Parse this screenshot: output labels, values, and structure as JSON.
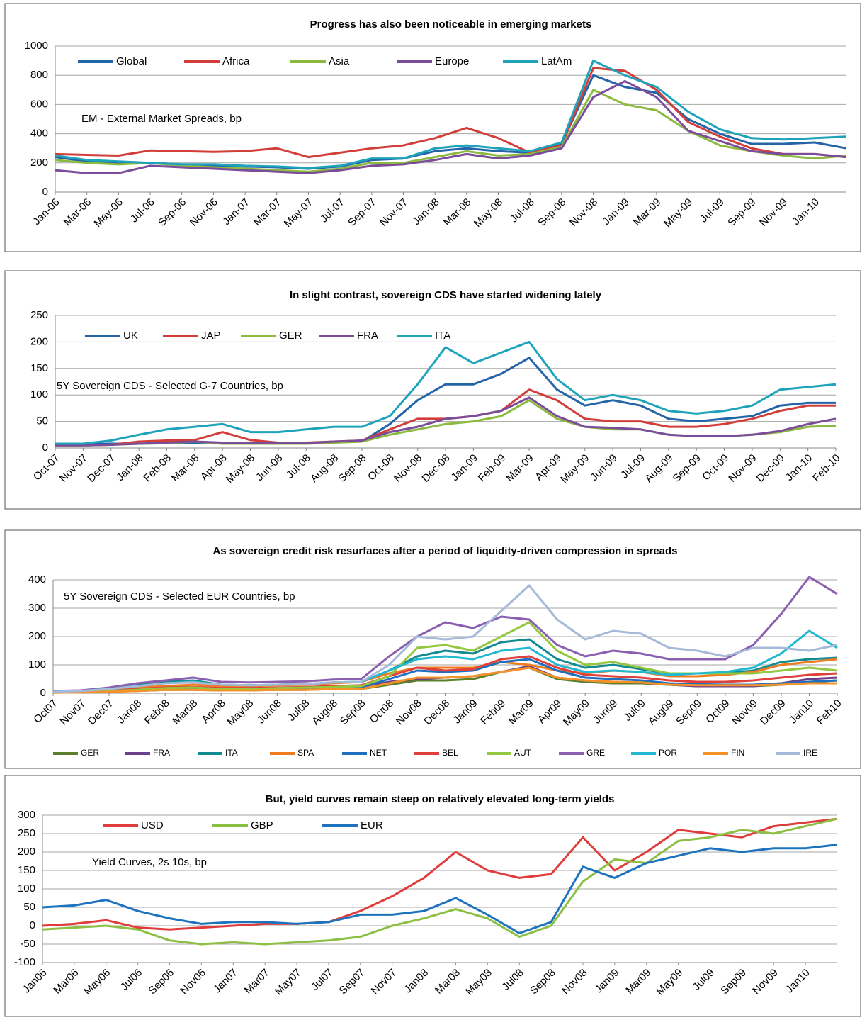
{
  "chart_data": [
    {
      "type": "line",
      "title": "Progress has also  been noticeable in emerging markets",
      "annotation": "EM - External Market Spreads, bp",
      "legend": "top",
      "categories": [
        "Jan-06",
        "Mar-06",
        "May-06",
        "Jul-06",
        "Sep-06",
        "Nov-06",
        "Jan-07",
        "Mar-07",
        "May-07",
        "Jul-07",
        "Sep-07",
        "Nov-07",
        "Jan-08",
        "Mar-08",
        "May-08",
        "Jul-08",
        "Sep-08",
        "Nov-08",
        "Jan-09",
        "Mar-09",
        "May-09",
        "Jul-09",
        "Sep-09",
        "Nov-09",
        "Jan-10",
        null
      ],
      "ylim": [
        0,
        1000
      ],
      "yticks": [
        0,
        200,
        400,
        600,
        800,
        1000
      ],
      "grid": true,
      "series": [
        {
          "name": "Global",
          "color": "#2464a8",
          "values": [
            240,
            210,
            195,
            200,
            190,
            180,
            175,
            170,
            160,
            175,
            220,
            230,
            280,
            300,
            280,
            270,
            330,
            800,
            720,
            680,
            500,
            400,
            330,
            330,
            340,
            300
          ]
        },
        {
          "name": "Africa",
          "color": "#d23f3b",
          "values": [
            260,
            255,
            250,
            285,
            280,
            275,
            280,
            300,
            240,
            270,
            300,
            320,
            370,
            440,
            370,
            270,
            320,
            850,
            830,
            700,
            480,
            380,
            300,
            260,
            260,
            240
          ]
        },
        {
          "name": "Asia",
          "color": "#8cba3f",
          "values": [
            220,
            200,
            190,
            200,
            180,
            170,
            160,
            150,
            140,
            160,
            200,
            200,
            240,
            280,
            250,
            260,
            310,
            700,
            600,
            560,
            420,
            320,
            280,
            250,
            230,
            250
          ]
        },
        {
          "name": "Europe",
          "color": "#7b4c9a",
          "values": [
            150,
            130,
            130,
            180,
            170,
            160,
            150,
            140,
            130,
            150,
            180,
            190,
            220,
            260,
            230,
            250,
            300,
            650,
            760,
            650,
            420,
            350,
            280,
            260,
            260,
            240
          ]
        },
        {
          "name": "LatAm",
          "color": "#1fa3bb",
          "values": [
            250,
            220,
            210,
            200,
            190,
            190,
            180,
            175,
            165,
            180,
            230,
            230,
            300,
            320,
            300,
            280,
            340,
            900,
            800,
            720,
            550,
            430,
            370,
            360,
            370,
            380
          ]
        }
      ]
    },
    {
      "type": "line",
      "title": "In slight  contrast, sovereign CDS have started widening lately",
      "annotation": "5Y Sovereign CDS - Selected G-7  Countries, bp",
      "legend": "top",
      "categories": [
        "Oct-07",
        "Nov-07",
        "Dec-07",
        "Jan-08",
        "Feb-08",
        "Mar-08",
        "Apr-08",
        "May-08",
        "Jun-08",
        "Jul-08",
        "Aug-08",
        "Sep-08",
        "Oct-08",
        "Nov-08",
        "Dec-08",
        "Jan-09",
        "Feb-09",
        "Mar-09",
        "Apr-09",
        "May-09",
        "Jun-09",
        "Jul-09",
        "Aug-09",
        "Sep-09",
        "Oct-09",
        "Nov-09",
        "Dec-09",
        "Jan-10",
        "Feb-10"
      ],
      "ylim": [
        0,
        250
      ],
      "yticks": [
        0,
        50,
        100,
        150,
        200,
        250
      ],
      "grid": true,
      "series": [
        {
          "name": "UK",
          "color": "#2464a8",
          "values": [
            8,
            8,
            8,
            8,
            9,
            10,
            9,
            9,
            9,
            9,
            12,
            12,
            45,
            90,
            120,
            120,
            140,
            170,
            110,
            80,
            90,
            80,
            55,
            50,
            55,
            60,
            80,
            85,
            85
          ]
        },
        {
          "name": "JAP",
          "color": "#d23f3b",
          "values": [
            5,
            5,
            6,
            12,
            14,
            15,
            30,
            15,
            10,
            10,
            12,
            14,
            35,
            55,
            55,
            60,
            70,
            110,
            90,
            55,
            50,
            50,
            40,
            40,
            45,
            55,
            70,
            80,
            80
          ]
        },
        {
          "name": "GER",
          "color": "#8cba3f",
          "values": [
            5,
            5,
            6,
            8,
            9,
            12,
            8,
            8,
            8,
            8,
            10,
            12,
            25,
            35,
            45,
            50,
            60,
            90,
            55,
            40,
            35,
            35,
            25,
            22,
            22,
            25,
            30,
            40,
            42
          ]
        },
        {
          "name": "FRA",
          "color": "#7b4c9a",
          "values": [
            5,
            5,
            6,
            8,
            10,
            12,
            10,
            9,
            9,
            9,
            12,
            14,
            30,
            40,
            55,
            60,
            70,
            95,
            60,
            40,
            38,
            35,
            25,
            22,
            22,
            25,
            32,
            45,
            55
          ]
        },
        {
          "name": "ITA",
          "color": "#1fa3bb",
          "values": [
            8,
            8,
            14,
            25,
            35,
            40,
            45,
            30,
            30,
            35,
            40,
            40,
            60,
            120,
            190,
            160,
            180,
            200,
            130,
            90,
            100,
            90,
            70,
            65,
            70,
            80,
            110,
            115,
            120
          ]
        }
      ]
    },
    {
      "type": "line",
      "title": "As sovereign credit risk resurfaces after a period of liquidity-driven compression in spreads",
      "annotation": "5Y Sovereign CDS - Selected EUR  Countries, bp",
      "legend": "bottom",
      "categories": [
        "Oct07",
        "Nov07",
        "Dec07",
        "Jan08",
        "Feb08",
        "Mar08",
        "Apr08",
        "May08",
        "Jun08",
        "Jul08",
        "Aug08",
        "Sep08",
        "Oct08",
        "Nov08",
        "Dec08",
        "Jan09",
        "Feb09",
        "Mar09",
        "Apr09",
        "May09",
        "Jun09",
        "Jul09",
        "Aug09",
        "Sep09",
        "Oct09",
        "Nov09",
        "Dec09",
        "Jan10",
        "Feb10"
      ],
      "ylim": [
        0,
        400
      ],
      "yticks": [
        0,
        100,
        200,
        300,
        400
      ],
      "grid": true,
      "series": [
        {
          "name": "GER",
          "color": "#5b7f2a",
          "values": [
            3,
            4,
            6,
            8,
            12,
            12,
            10,
            10,
            12,
            12,
            15,
            15,
            30,
            45,
            45,
            50,
            75,
            90,
            50,
            40,
            35,
            35,
            30,
            25,
            25,
            25,
            30,
            40,
            45
          ]
        },
        {
          "name": "FRA",
          "color": "#6b3f8a",
          "values": [
            3,
            4,
            6,
            10,
            15,
            15,
            12,
            12,
            14,
            14,
            16,
            20,
            40,
            50,
            55,
            60,
            75,
            95,
            55,
            45,
            40,
            38,
            30,
            25,
            25,
            25,
            35,
            50,
            55
          ]
        },
        {
          "name": "ITA",
          "color": "#138a90",
          "values": [
            5,
            8,
            15,
            30,
            40,
            45,
            30,
            28,
            30,
            32,
            38,
            40,
            80,
            130,
            150,
            140,
            180,
            190,
            120,
            90,
            100,
            85,
            70,
            70,
            70,
            80,
            110,
            120,
            125
          ]
        },
        {
          "name": "SPA",
          "color": "#f07c22",
          "values": [
            3,
            5,
            10,
            20,
            25,
            30,
            25,
            25,
            28,
            30,
            35,
            40,
            70,
            90,
            90,
            90,
            110,
            100,
            80,
            70,
            80,
            75,
            60,
            60,
            65,
            75,
            100,
            110,
            120
          ]
        },
        {
          "name": "NET",
          "color": "#1f6fbf",
          "values": [
            3,
            4,
            6,
            10,
            15,
            15,
            12,
            12,
            14,
            15,
            18,
            20,
            50,
            80,
            75,
            80,
            110,
            120,
            80,
            55,
            50,
            45,
            35,
            32,
            30,
            30,
            35,
            40,
            45
          ]
        },
        {
          "name": "BEL",
          "color": "#e0403c",
          "values": [
            4,
            5,
            8,
            15,
            20,
            22,
            18,
            18,
            20,
            22,
            25,
            28,
            60,
            90,
            80,
            85,
            120,
            130,
            90,
            65,
            60,
            55,
            45,
            40,
            40,
            45,
            55,
            65,
            70
          ]
        },
        {
          "name": "AUT",
          "color": "#93c83e",
          "values": [
            3,
            5,
            8,
            12,
            18,
            20,
            15,
            15,
            18,
            20,
            22,
            25,
            60,
            160,
            170,
            150,
            200,
            250,
            150,
            100,
            110,
            90,
            70,
            70,
            70,
            70,
            80,
            90,
            80
          ]
        },
        {
          "name": "GRE",
          "color": "#8a5fb0",
          "values": [
            8,
            10,
            20,
            35,
            45,
            55,
            40,
            38,
            40,
            42,
            48,
            50,
            130,
            200,
            250,
            230,
            270,
            260,
            170,
            130,
            150,
            140,
            120,
            120,
            120,
            170,
            280,
            410,
            350
          ]
        },
        {
          "name": "POR",
          "color": "#21b8d0",
          "values": [
            5,
            8,
            15,
            25,
            35,
            40,
            30,
            28,
            30,
            32,
            38,
            40,
            80,
            120,
            130,
            120,
            150,
            160,
            100,
            75,
            80,
            75,
            65,
            70,
            75,
            90,
            140,
            220,
            160
          ]
        },
        {
          "name": "FIN",
          "color": "#f5932a",
          "values": [
            2,
            3,
            5,
            8,
            12,
            12,
            10,
            10,
            12,
            12,
            15,
            15,
            35,
            55,
            55,
            60,
            75,
            90,
            55,
            45,
            40,
            38,
            30,
            28,
            28,
            28,
            30,
            35,
            35
          ]
        },
        {
          "name": "IRE",
          "color": "#a5b9d8",
          "values": [
            5,
            8,
            15,
            25,
            35,
            38,
            30,
            28,
            30,
            32,
            38,
            40,
            100,
            200,
            190,
            200,
            290,
            380,
            260,
            190,
            220,
            210,
            160,
            150,
            130,
            160,
            160,
            150,
            170
          ]
        }
      ]
    },
    {
      "type": "line",
      "title": "But, yield curves remain steep on relatively elevated long-term yields",
      "annotation": "Yield Curves, 2s 10s, bp",
      "legend": "top",
      "categories": [
        "Jan06",
        "Mar06",
        "May06",
        "Jul06",
        "Sep06",
        "Nov06",
        "Jan07",
        "Mar07",
        "May07",
        "Jul07",
        "Sep07",
        "Nov07",
        "Jan08",
        "Mar08",
        "May08",
        "Jul08",
        "Sep08",
        "Nov08",
        "Jan09",
        "Mar09",
        "May09",
        "Jul09",
        "Sep09",
        "Nov09",
        "Jan10",
        null
      ],
      "ylim": [
        -100,
        300
      ],
      "yticks": [
        -100,
        -50,
        0,
        50,
        100,
        150,
        200,
        250,
        300
      ],
      "grid": true,
      "series": [
        {
          "name": "USD",
          "color": "#e03c3c",
          "values": [
            0,
            5,
            15,
            -5,
            -10,
            -5,
            0,
            5,
            5,
            10,
            40,
            80,
            130,
            200,
            150,
            130,
            140,
            240,
            150,
            200,
            260,
            250,
            240,
            270,
            280,
            290
          ]
        },
        {
          "name": "GBP",
          "color": "#8cc044",
          "values": [
            -10,
            -5,
            0,
            -10,
            -40,
            -50,
            -45,
            -50,
            -45,
            -40,
            -30,
            0,
            20,
            45,
            20,
            -30,
            0,
            120,
            180,
            170,
            230,
            240,
            260,
            250,
            270,
            290
          ]
        },
        {
          "name": "EUR",
          "color": "#1e73be",
          "values": [
            50,
            55,
            70,
            40,
            20,
            5,
            10,
            10,
            5,
            10,
            30,
            30,
            40,
            75,
            30,
            -20,
            10,
            160,
            130,
            170,
            190,
            210,
            200,
            210,
            210,
            220
          ]
        }
      ]
    }
  ]
}
